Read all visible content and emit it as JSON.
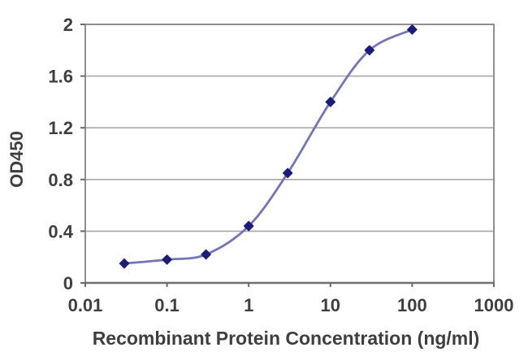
{
  "chart_data": {
    "type": "line",
    "title": "",
    "xlabel": "Recombinant Protein Concentration (ng/ml)",
    "ylabel": "OD450",
    "x_scale": "log",
    "xlim": [
      0.01,
      1000
    ],
    "ylim": [
      0,
      2
    ],
    "x_ticks": [
      0.01,
      0.1,
      1,
      10,
      100,
      1000
    ],
    "x_tick_labels": [
      "0.01",
      "0.1",
      "1",
      "10",
      "100",
      "1000"
    ],
    "y_ticks": [
      0,
      0.4,
      0.8,
      1.2,
      1.6,
      2
    ],
    "y_tick_labels": [
      "0",
      "0.4",
      "0.8",
      "1.2",
      "1.6",
      "2"
    ],
    "grid": "horizontal",
    "legend": "none",
    "series": [
      {
        "name": "OD450",
        "marker": "diamond",
        "x": [
          0.03,
          0.1,
          0.3,
          1,
          3,
          10,
          30,
          100
        ],
        "y": [
          0.15,
          0.18,
          0.22,
          0.44,
          0.85,
          1.4,
          1.8,
          1.96
        ]
      }
    ]
  },
  "colors": {
    "line": "#7173c6",
    "marker": "#1b1b80",
    "grid": "#a8a8a8",
    "frame": "#8f8f8f",
    "axis": "#6f6f6f",
    "tick": "#6a6a6a",
    "text": "#3f3f3f",
    "background": "#ffffff"
  }
}
